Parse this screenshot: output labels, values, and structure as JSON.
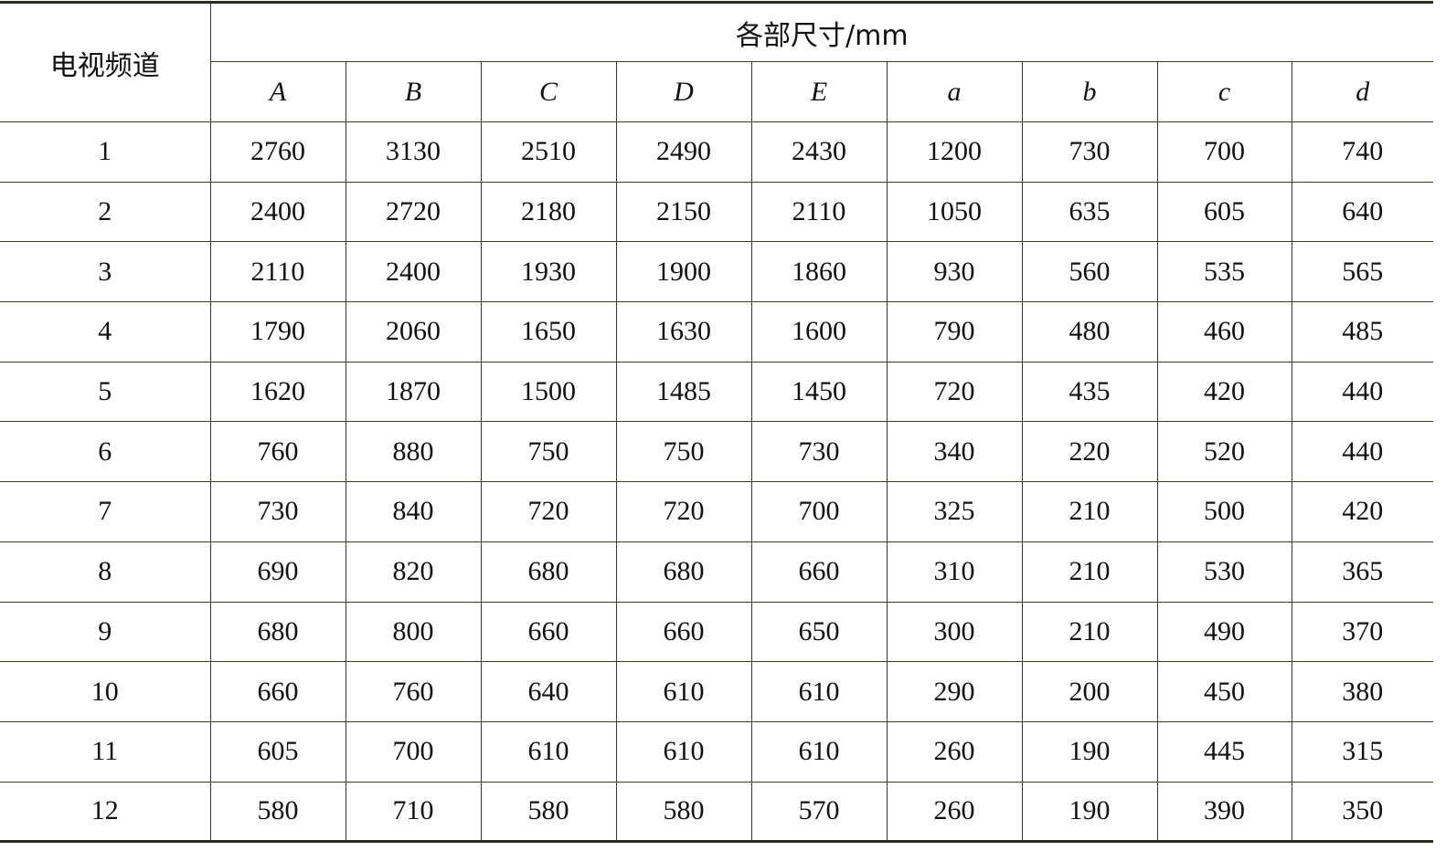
{
  "table": {
    "row_header": "电视频道",
    "group_header": "各部尺寸/mm",
    "columns": [
      "A",
      "B",
      "C",
      "D",
      "E",
      "a",
      "b",
      "c",
      "d"
    ],
    "rows": [
      {
        "channel": "1",
        "values": [
          "2760",
          "3130",
          "2510",
          "2490",
          "2430",
          "1200",
          "730",
          "700",
          "740"
        ]
      },
      {
        "channel": "2",
        "values": [
          "2400",
          "2720",
          "2180",
          "2150",
          "2110",
          "1050",
          "635",
          "605",
          "640"
        ]
      },
      {
        "channel": "3",
        "values": [
          "2110",
          "2400",
          "1930",
          "1900",
          "1860",
          "930",
          "560",
          "535",
          "565"
        ]
      },
      {
        "channel": "4",
        "values": [
          "1790",
          "2060",
          "1650",
          "1630",
          "1600",
          "790",
          "480",
          "460",
          "485"
        ]
      },
      {
        "channel": "5",
        "values": [
          "1620",
          "1870",
          "1500",
          "1485",
          "1450",
          "720",
          "435",
          "420",
          "440"
        ]
      },
      {
        "channel": "6",
        "values": [
          "760",
          "880",
          "750",
          "750",
          "730",
          "340",
          "220",
          "520",
          "440"
        ]
      },
      {
        "channel": "7",
        "values": [
          "730",
          "840",
          "720",
          "720",
          "700",
          "325",
          "210",
          "500",
          "420"
        ]
      },
      {
        "channel": "8",
        "values": [
          "690",
          "820",
          "680",
          "680",
          "660",
          "310",
          "210",
          "530",
          "365"
        ]
      },
      {
        "channel": "9",
        "values": [
          "680",
          "800",
          "660",
          "660",
          "650",
          "300",
          "210",
          "490",
          "370"
        ]
      },
      {
        "channel": "10",
        "values": [
          "660",
          "760",
          "640",
          "610",
          "610",
          "290",
          "200",
          "450",
          "380"
        ]
      },
      {
        "channel": "11",
        "values": [
          "605",
          "700",
          "610",
          "610",
          "610",
          "260",
          "190",
          "445",
          "315"
        ]
      },
      {
        "channel": "12",
        "values": [
          "580",
          "710",
          "580",
          "580",
          "570",
          "260",
          "190",
          "390",
          "350"
        ]
      }
    ]
  }
}
